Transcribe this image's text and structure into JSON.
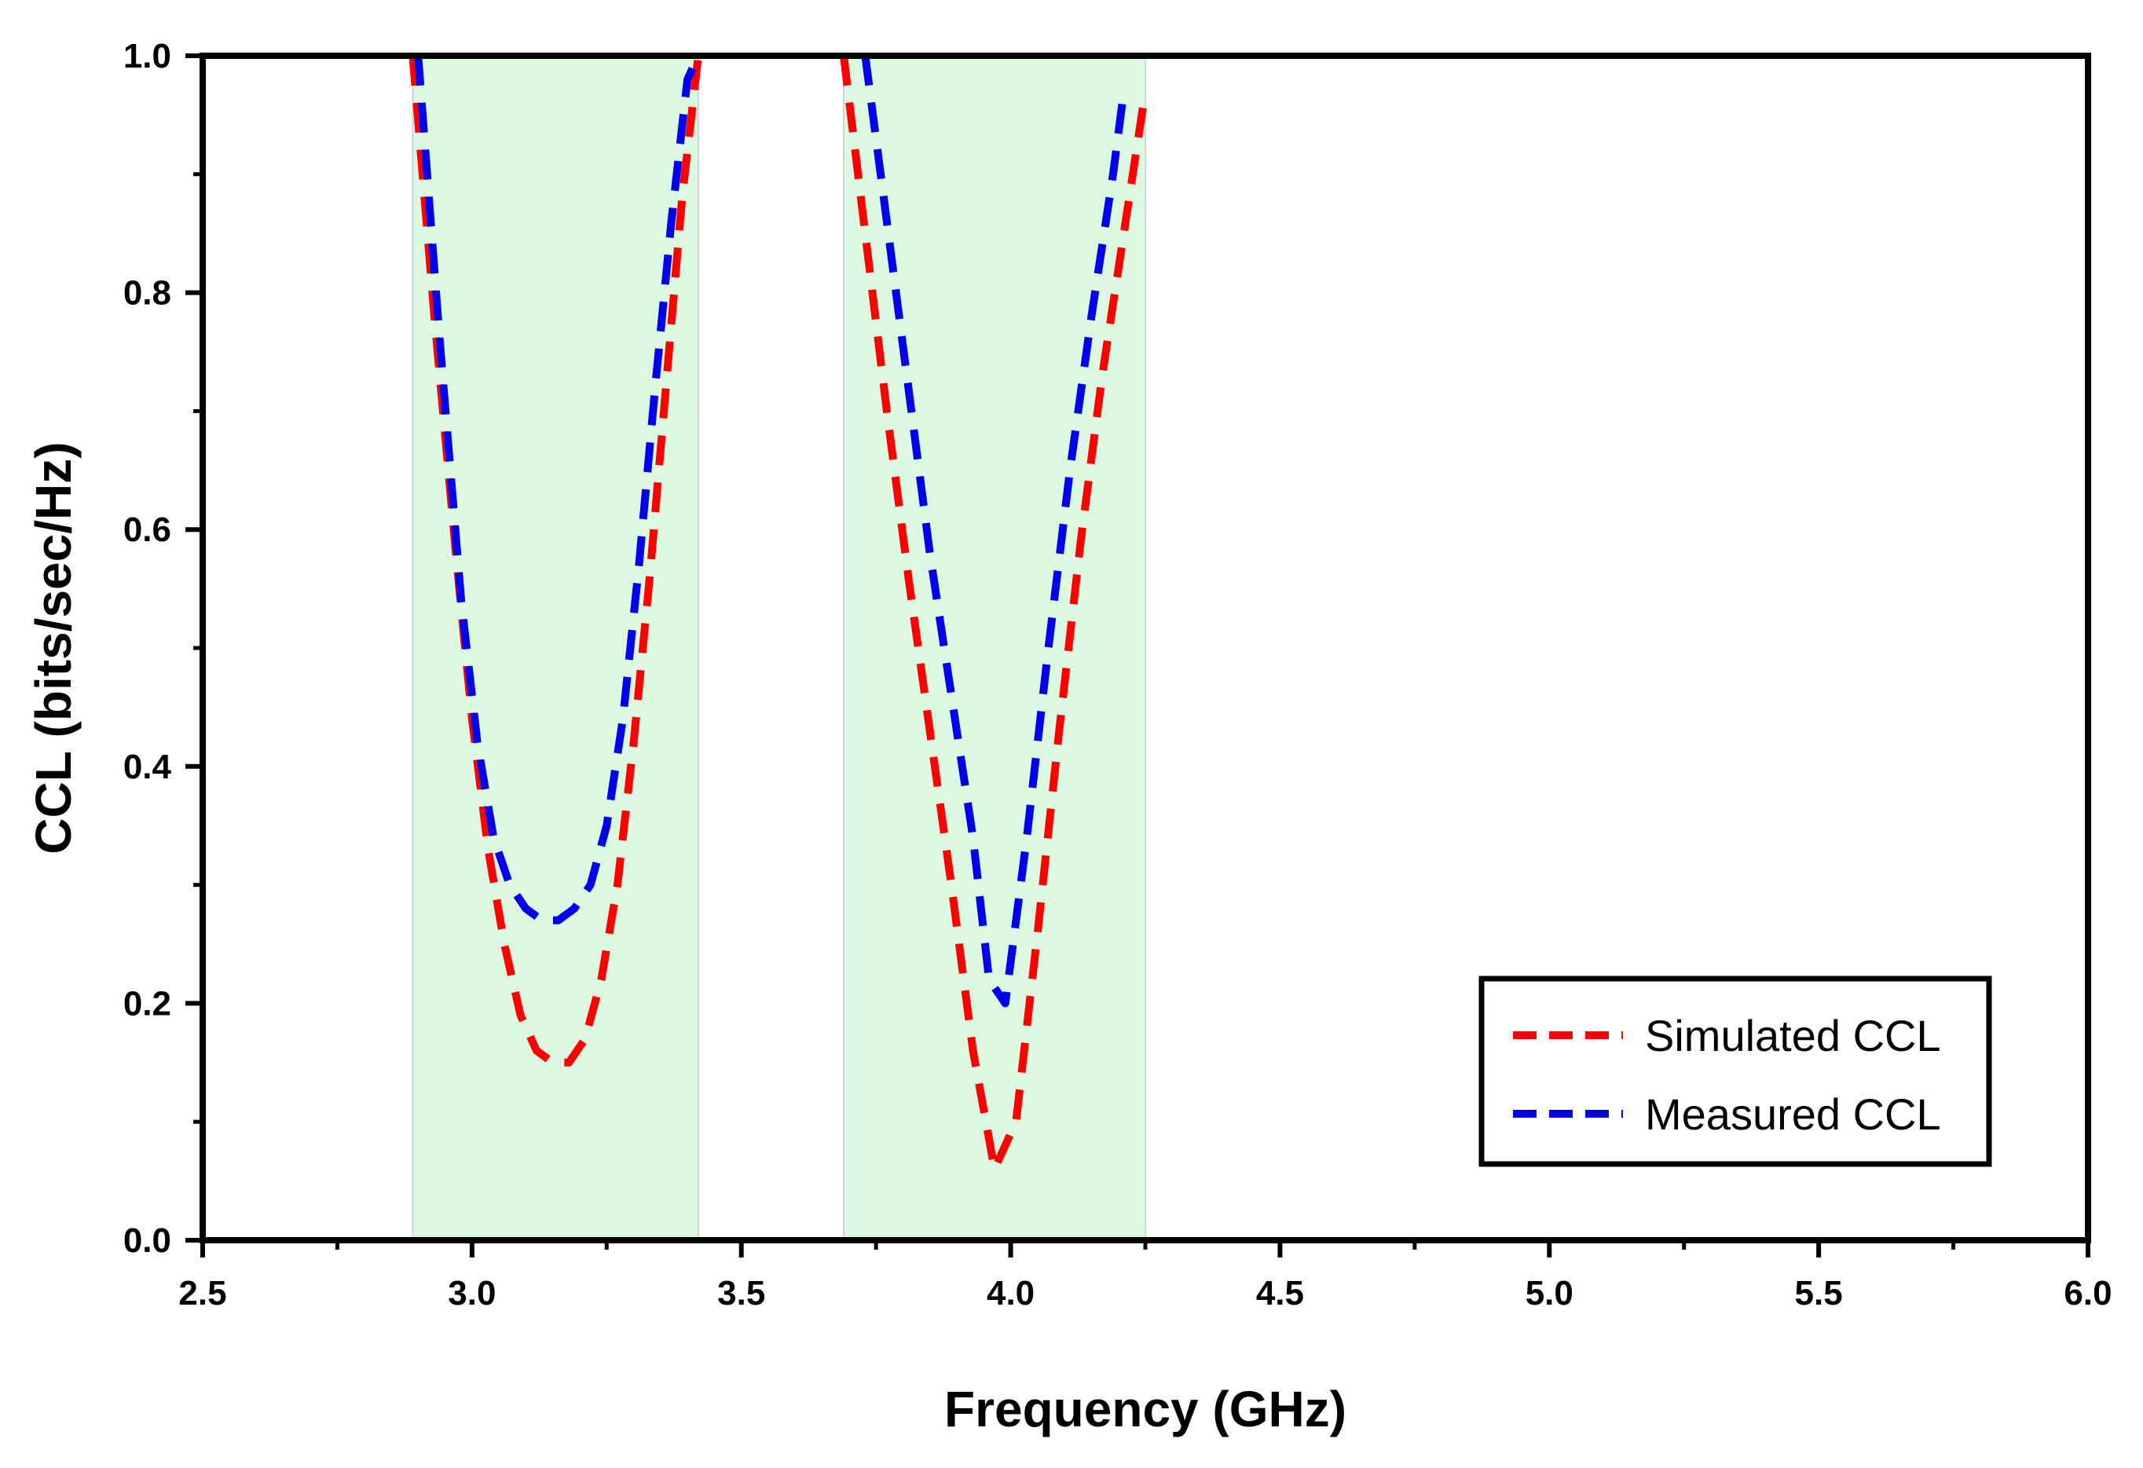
{
  "chart_data": {
    "type": "line",
    "title": "",
    "xlabel": "Frequency (GHz)",
    "ylabel": "CCL (bits/sec/Hz)",
    "xlim": [
      2.5,
      6.0
    ],
    "ylim": [
      0.0,
      1.0
    ],
    "xticks": [
      "2.5",
      "3.0",
      "3.5",
      "4.0",
      "4.5",
      "5.0",
      "5.5",
      "6.0"
    ],
    "yticks": [
      "0.0",
      "0.2",
      "0.4",
      "0.6",
      "0.8",
      "1.0"
    ],
    "grid": false,
    "legend_position": "bottom-right",
    "shaded_bands": [
      {
        "x0": 2.89,
        "x1": 3.42,
        "color": "#dcf8e0"
      },
      {
        "x0": 3.69,
        "x1": 4.25,
        "color": "#dcf8e0"
      }
    ],
    "series": [
      {
        "name": "Simulated CCL",
        "color": "#ff0000",
        "segments": [
          {
            "x": [
              2.89,
              2.93,
              2.97,
              3.0,
              3.03,
              3.06,
              3.09,
              3.12,
              3.15,
              3.18,
              3.21,
              3.24,
              3.27,
              3.3,
              3.33,
              3.36,
              3.39,
              3.42
            ],
            "y": [
              1.0,
              0.78,
              0.58,
              0.44,
              0.33,
              0.25,
              0.19,
              0.16,
              0.15,
              0.15,
              0.17,
              0.22,
              0.3,
              0.42,
              0.56,
              0.72,
              0.88,
              1.0
            ]
          },
          {
            "x": [
              3.69,
              3.73,
              3.77,
              3.81,
              3.85,
              3.89,
              3.93,
              3.97,
              4.01,
              4.05,
              4.09,
              4.13,
              4.17,
              4.21,
              4.25
            ],
            "y": [
              1.0,
              0.85,
              0.7,
              0.56,
              0.43,
              0.3,
              0.16,
              0.06,
              0.1,
              0.26,
              0.43,
              0.59,
              0.73,
              0.85,
              0.97
            ]
          }
        ]
      },
      {
        "name": "Measured CCL",
        "color": "#0000ee",
        "segments": [
          {
            "x": [
              2.9,
              2.94,
              2.98,
              3.01,
              3.04,
              3.07,
              3.1,
              3.13,
              3.16,
              3.19,
              3.22,
              3.25,
              3.28,
              3.31,
              3.34,
              3.37,
              3.4,
              3.42
            ],
            "y": [
              1.0,
              0.76,
              0.54,
              0.42,
              0.34,
              0.3,
              0.28,
              0.27,
              0.27,
              0.28,
              0.3,
              0.35,
              0.44,
              0.57,
              0.72,
              0.86,
              0.98,
              1.0
            ]
          },
          {
            "x": [
              3.73,
              3.77,
              3.81,
              3.85,
              3.89,
              3.93,
              3.96,
              3.99,
              4.03,
              4.07,
              4.11,
              4.15,
              4.19,
              4.21
            ],
            "y": [
              1.0,
              0.86,
              0.72,
              0.58,
              0.46,
              0.34,
              0.22,
              0.2,
              0.34,
              0.5,
              0.65,
              0.78,
              0.9,
              0.97
            ]
          }
        ]
      }
    ]
  }
}
